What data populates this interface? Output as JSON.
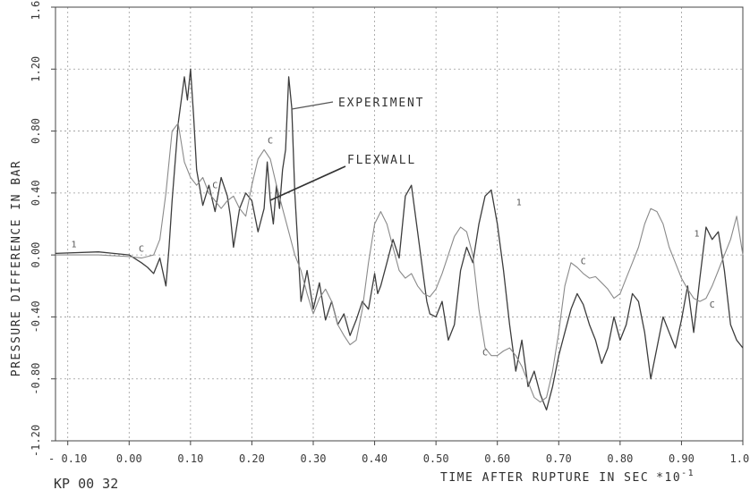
{
  "chart_data": {
    "type": "line",
    "title": "",
    "xlabel": "TIME AFTER RUPTURE IN SEC",
    "xlabel_unit": "*10",
    "xlabel_exp": "-1",
    "ylabel": "PRESSURE DIFFERENCE IN BAR",
    "xlim": [
      -0.12,
      1.0
    ],
    "ylim": [
      -1.2,
      1.6
    ],
    "grid": true,
    "x_ticks": [
      -0.1,
      0.0,
      0.1,
      0.2,
      0.3,
      0.4,
      0.5,
      0.6,
      0.7,
      0.8,
      0.9,
      1.0
    ],
    "x_tick_labels": [
      "- 0.10",
      "0.00",
      "0.10",
      "0.20",
      "0.30",
      "0.40",
      "0.50",
      "0.60",
      "0.70",
      "0.80",
      "0.90",
      "1.00"
    ],
    "y_ticks": [
      -1.2,
      -0.8,
      -0.4,
      0.0,
      0.4,
      0.8,
      1.2,
      1.6
    ],
    "y_tick_labels": [
      "-1.20",
      "-0.80",
      "-0.40",
      "0.00",
      "0.40",
      "0.80",
      "1.20",
      "1.60"
    ],
    "annotations": {
      "experiment": "EXPERIMENT",
      "flexwall": "FLEXWALL",
      "reference": "KP 00 32"
    },
    "curve_marks": [
      {
        "text": "1",
        "x": -0.09,
        "y": 0.05
      },
      {
        "text": "C",
        "x": 0.02,
        "y": 0.02
      },
      {
        "text": "C",
        "x": 0.14,
        "y": 0.43
      },
      {
        "text": "C",
        "x": 0.23,
        "y": 0.72
      },
      {
        "text": "C",
        "x": 0.58,
        "y": -0.65
      },
      {
        "text": "C",
        "x": 0.74,
        "y": -0.06
      },
      {
        "text": "C",
        "x": 0.95,
        "y": -0.34
      },
      {
        "text": "1",
        "x": 0.925,
        "y": 0.12
      },
      {
        "text": "1",
        "x": 0.635,
        "y": 0.32
      }
    ],
    "series": [
      {
        "color": "#3d3d3d",
        "x": [
          -0.12,
          -0.05,
          0.0,
          0.02,
          0.03,
          0.04,
          0.05,
          0.06,
          0.065,
          0.07,
          0.08,
          0.09,
          0.095,
          0.1,
          0.105,
          0.11,
          0.12,
          0.13,
          0.14,
          0.15,
          0.16,
          0.165,
          0.17,
          0.18,
          0.19,
          0.2,
          0.21,
          0.22,
          0.225,
          0.23,
          0.235,
          0.24,
          0.245,
          0.25,
          0.255,
          0.26,
          0.265,
          0.27,
          0.275,
          0.28,
          0.29,
          0.3,
          0.31,
          0.32,
          0.33,
          0.34,
          0.35,
          0.36,
          0.37,
          0.38,
          0.39,
          0.4,
          0.405,
          0.41,
          0.42,
          0.43,
          0.44,
          0.45,
          0.46,
          0.47,
          0.48,
          0.485,
          0.49,
          0.5,
          0.51,
          0.52,
          0.53,
          0.54,
          0.55,
          0.56,
          0.57,
          0.58,
          0.59,
          0.6,
          0.61,
          0.62,
          0.63,
          0.64,
          0.65,
          0.66,
          0.67,
          0.68,
          0.69,
          0.7,
          0.71,
          0.72,
          0.73,
          0.74,
          0.75,
          0.76,
          0.77,
          0.78,
          0.79,
          0.8,
          0.81,
          0.82,
          0.83,
          0.84,
          0.85,
          0.86,
          0.87,
          0.88,
          0.89,
          0.9,
          0.91,
          0.92,
          0.93,
          0.94,
          0.95,
          0.96,
          0.97,
          0.98,
          0.99,
          1.0
        ],
        "y": [
          0.01,
          0.02,
          0.0,
          -0.05,
          -0.08,
          -0.12,
          -0.02,
          -0.2,
          0.05,
          0.35,
          0.85,
          1.15,
          1.0,
          1.2,
          0.9,
          0.55,
          0.32,
          0.45,
          0.28,
          0.5,
          0.38,
          0.25,
          0.05,
          0.3,
          0.4,
          0.35,
          0.15,
          0.3,
          0.6,
          0.35,
          0.2,
          0.45,
          0.3,
          0.55,
          0.68,
          1.15,
          0.95,
          0.4,
          0.05,
          -0.3,
          -0.1,
          -0.35,
          -0.18,
          -0.42,
          -0.3,
          -0.45,
          -0.38,
          -0.52,
          -0.42,
          -0.3,
          -0.35,
          -0.12,
          -0.25,
          -0.2,
          -0.05,
          0.1,
          -0.02,
          0.38,
          0.45,
          0.15,
          -0.15,
          -0.3,
          -0.38,
          -0.4,
          -0.3,
          -0.55,
          -0.45,
          -0.1,
          0.05,
          -0.05,
          0.2,
          0.38,
          0.42,
          0.2,
          -0.1,
          -0.45,
          -0.75,
          -0.55,
          -0.85,
          -0.75,
          -0.9,
          -1.0,
          -0.85,
          -0.65,
          -0.5,
          -0.35,
          -0.25,
          -0.32,
          -0.45,
          -0.55,
          -0.7,
          -0.6,
          -0.4,
          -0.55,
          -0.45,
          -0.25,
          -0.3,
          -0.5,
          -0.8,
          -0.6,
          -0.4,
          -0.5,
          -0.6,
          -0.42,
          -0.2,
          -0.5,
          -0.15,
          0.18,
          0.1,
          0.15,
          -0.1,
          -0.45,
          -0.55,
          -0.6
        ]
      },
      {
        "color": "#8a8a8a",
        "x": [
          -0.12,
          -0.05,
          0.0,
          0.02,
          0.04,
          0.05,
          0.06,
          0.07,
          0.08,
          0.09,
          0.1,
          0.11,
          0.12,
          0.13,
          0.14,
          0.15,
          0.16,
          0.17,
          0.18,
          0.19,
          0.2,
          0.21,
          0.22,
          0.23,
          0.24,
          0.25,
          0.26,
          0.27,
          0.28,
          0.29,
          0.3,
          0.31,
          0.32,
          0.33,
          0.34,
          0.35,
          0.36,
          0.37,
          0.38,
          0.39,
          0.4,
          0.41,
          0.42,
          0.43,
          0.44,
          0.45,
          0.46,
          0.47,
          0.48,
          0.49,
          0.5,
          0.51,
          0.52,
          0.53,
          0.54,
          0.55,
          0.56,
          0.57,
          0.58,
          0.59,
          0.6,
          0.61,
          0.62,
          0.63,
          0.64,
          0.65,
          0.66,
          0.67,
          0.68,
          0.69,
          0.7,
          0.71,
          0.72,
          0.73,
          0.74,
          0.75,
          0.76,
          0.77,
          0.78,
          0.79,
          0.8,
          0.81,
          0.82,
          0.83,
          0.84,
          0.85,
          0.86,
          0.87,
          0.88,
          0.89,
          0.9,
          0.91,
          0.92,
          0.93,
          0.94,
          0.95,
          0.96,
          0.97,
          0.98,
          0.99,
          1.0
        ],
        "y": [
          0.0,
          0.0,
          -0.01,
          -0.02,
          0.0,
          0.1,
          0.4,
          0.8,
          0.85,
          0.6,
          0.5,
          0.45,
          0.5,
          0.4,
          0.35,
          0.3,
          0.35,
          0.38,
          0.3,
          0.25,
          0.45,
          0.62,
          0.68,
          0.62,
          0.45,
          0.3,
          0.15,
          0.0,
          -0.1,
          -0.25,
          -0.38,
          -0.28,
          -0.22,
          -0.3,
          -0.45,
          -0.52,
          -0.58,
          -0.55,
          -0.35,
          -0.05,
          0.2,
          0.28,
          0.2,
          0.05,
          -0.1,
          -0.15,
          -0.12,
          -0.2,
          -0.25,
          -0.27,
          -0.22,
          -0.12,
          0.0,
          0.12,
          0.18,
          0.15,
          0.0,
          -0.35,
          -0.6,
          -0.65,
          -0.65,
          -0.62,
          -0.6,
          -0.65,
          -0.72,
          -0.82,
          -0.92,
          -0.95,
          -0.92,
          -0.75,
          -0.5,
          -0.2,
          -0.05,
          -0.08,
          -0.12,
          -0.15,
          -0.14,
          -0.18,
          -0.22,
          -0.28,
          -0.25,
          -0.15,
          -0.05,
          0.05,
          0.2,
          0.3,
          0.28,
          0.2,
          0.05,
          -0.05,
          -0.15,
          -0.22,
          -0.28,
          -0.3,
          -0.28,
          -0.2,
          -0.1,
          0.0,
          0.1,
          0.25,
          0.0
        ]
      }
    ]
  }
}
